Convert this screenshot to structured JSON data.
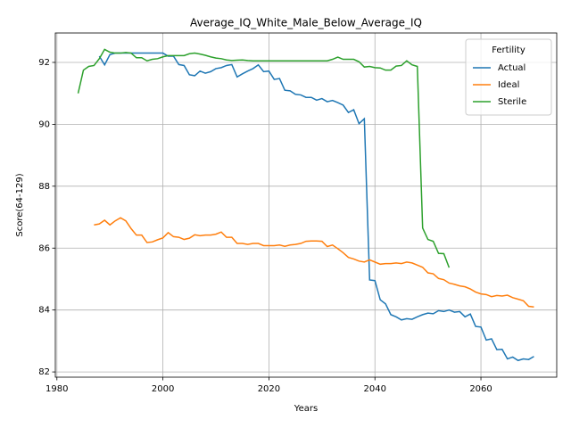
{
  "chart_data": {
    "type": "line",
    "title": "Average_IQ_White_Male_Below_Average_IQ",
    "x_label": "Years",
    "y_label": "Score(64-129)",
    "legend_title": "Fertility",
    "legend_position": "upper right",
    "grid": true,
    "xlim": [
      1979.7,
      2074.3
    ],
    "ylim": [
      81.83,
      92.95
    ],
    "xticks": [
      1980,
      2000,
      2020,
      2040,
      2060
    ],
    "yticks": [
      82,
      84,
      86,
      88,
      90,
      92
    ],
    "x": [
      1984,
      1985,
      1986,
      1987,
      1988,
      1989,
      1990,
      1991,
      1992,
      1993,
      1994,
      1995,
      1996,
      1997,
      1998,
      1999,
      2000,
      2001,
      2002,
      2003,
      2004,
      2005,
      2006,
      2007,
      2008,
      2009,
      2010,
      2011,
      2012,
      2013,
      2014,
      2015,
      2016,
      2017,
      2018,
      2019,
      2020,
      2021,
      2022,
      2023,
      2024,
      2025,
      2026,
      2027,
      2028,
      2029,
      2030,
      2031,
      2032,
      2033,
      2034,
      2035,
      2036,
      2037,
      2038,
      2039,
      2040,
      2041,
      2042,
      2043,
      2044,
      2045,
      2046,
      2047,
      2048,
      2049,
      2050,
      2051,
      2052,
      2053,
      2054,
      2055,
      2056,
      2057,
      2058,
      2059,
      2060,
      2061,
      2062,
      2063,
      2064,
      2065,
      2066,
      2067,
      2068,
      2069,
      2070
    ],
    "series": [
      {
        "name": "Actual",
        "color": "#1f77b4",
        "values": [
          null,
          null,
          null,
          null,
          92.2,
          91.92,
          92.25,
          92.3,
          92.3,
          92.3,
          92.3,
          92.3,
          92.3,
          92.3,
          92.3,
          92.3,
          92.3,
          92.2,
          92.2,
          91.93,
          91.9,
          91.6,
          91.57,
          91.72,
          91.65,
          91.7,
          91.8,
          91.83,
          91.9,
          91.93,
          91.53,
          91.63,
          91.72,
          91.8,
          91.92,
          91.7,
          91.72,
          91.45,
          91.48,
          91.1,
          91.08,
          90.97,
          90.95,
          90.87,
          90.87,
          90.78,
          90.83,
          90.73,
          90.77,
          90.7,
          90.62,
          90.38,
          90.47,
          90.02,
          90.18,
          84.97,
          84.95,
          84.33,
          84.2,
          83.85,
          83.78,
          83.68,
          83.72,
          83.7,
          83.78,
          83.85,
          83.9,
          83.88,
          83.98,
          83.95,
          84.0,
          83.93,
          83.95,
          83.78,
          83.87,
          83.47,
          83.45,
          83.03,
          83.07,
          82.72,
          82.73,
          82.42,
          82.48,
          82.37,
          82.42,
          82.4,
          82.5
        ]
      },
      {
        "name": "Ideal",
        "color": "#ff7f0e",
        "values": [
          null,
          null,
          null,
          86.75,
          86.78,
          86.9,
          86.75,
          86.88,
          86.98,
          86.88,
          86.63,
          86.42,
          86.42,
          86.18,
          86.2,
          86.27,
          86.33,
          86.5,
          86.37,
          86.35,
          86.28,
          86.32,
          86.43,
          86.4,
          86.42,
          86.42,
          86.45,
          86.52,
          86.35,
          86.35,
          86.15,
          86.15,
          86.12,
          86.15,
          86.15,
          86.08,
          86.08,
          86.08,
          86.1,
          86.06,
          86.1,
          86.12,
          86.15,
          86.22,
          86.23,
          86.23,
          86.22,
          86.05,
          86.1,
          85.98,
          85.85,
          85.7,
          85.65,
          85.58,
          85.55,
          85.62,
          85.55,
          85.48,
          85.5,
          85.5,
          85.52,
          85.5,
          85.55,
          85.52,
          85.45,
          85.38,
          85.2,
          85.17,
          85.02,
          84.98,
          84.87,
          84.83,
          84.78,
          84.75,
          84.68,
          84.58,
          84.52,
          84.5,
          84.43,
          84.47,
          84.45,
          84.48,
          84.4,
          84.35,
          84.3,
          84.12,
          84.1
        ]
      },
      {
        "name": "Sterile",
        "color": "#2ca02c",
        "values": [
          91.0,
          91.75,
          91.87,
          91.9,
          92.12,
          92.42,
          92.33,
          92.3,
          92.3,
          92.32,
          92.3,
          92.15,
          92.15,
          92.05,
          92.1,
          92.12,
          92.18,
          92.22,
          92.22,
          92.22,
          92.22,
          92.28,
          92.3,
          92.27,
          92.23,
          92.18,
          92.14,
          92.12,
          92.08,
          92.06,
          92.07,
          92.08,
          92.06,
          92.05,
          92.05,
          92.05,
          92.05,
          92.05,
          92.05,
          92.05,
          92.05,
          92.05,
          92.05,
          92.05,
          92.05,
          92.05,
          92.05,
          92.05,
          92.1,
          92.17,
          92.1,
          92.1,
          92.1,
          92.02,
          91.85,
          91.87,
          91.83,
          91.82,
          91.75,
          91.75,
          91.88,
          91.9,
          92.05,
          91.92,
          91.87,
          86.65,
          86.28,
          86.22,
          85.83,
          85.82,
          85.37,
          null,
          null,
          null,
          null,
          null,
          null,
          null,
          null,
          null,
          null,
          null,
          null,
          null,
          null,
          null,
          null
        ]
      }
    ]
  }
}
